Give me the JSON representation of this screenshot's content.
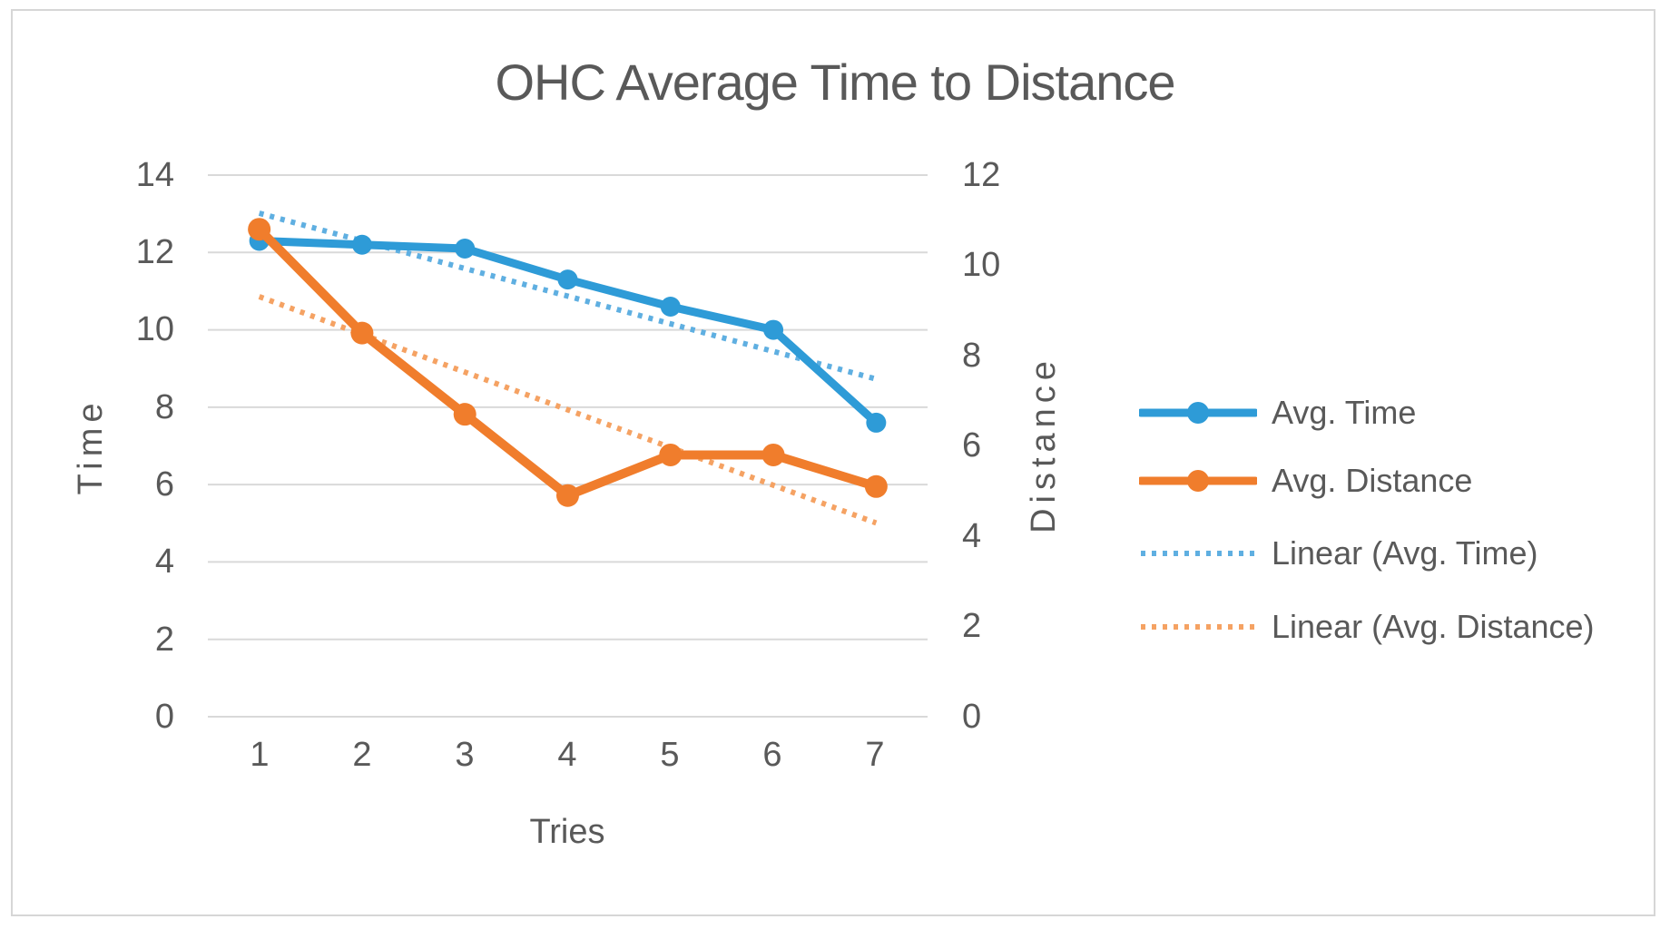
{
  "title": "OHC Average Time to Distance",
  "axes": {
    "left": {
      "title": "Time",
      "ticks": [
        "14",
        "12",
        "10",
        "8",
        "6",
        "4",
        "2",
        "0"
      ]
    },
    "right": {
      "title": "Distance",
      "ticks": [
        "12",
        "10",
        "8",
        "6",
        "4",
        "2",
        "0"
      ]
    },
    "x": {
      "title": "Tries",
      "ticks": [
        "1",
        "2",
        "3",
        "4",
        "5",
        "6",
        "7"
      ]
    }
  },
  "legend": {
    "items": [
      {
        "label": "Avg. Time",
        "color": "#2E9BD7",
        "style": "solid",
        "marker": true
      },
      {
        "label": "Avg. Distance",
        "color": "#F07D2C",
        "style": "solid",
        "marker": true
      },
      {
        "label": "Linear (Avg. Time)",
        "color": "#5FAFE1",
        "style": "dotted",
        "marker": false
      },
      {
        "label": "Linear (Avg. Distance)",
        "color": "#F5A263",
        "style": "dotted",
        "marker": false
      }
    ]
  },
  "colors": {
    "blue": "#2E9BD7",
    "orange": "#F07D2C",
    "blue_trend": "#5FAFE1",
    "orange_trend": "#F5A263",
    "gridline": "#D9D9D9",
    "text": "#595959",
    "border": "#D6D6D6",
    "background": "#FFFFFF"
  },
  "chart_data": {
    "type": "line",
    "title": "OHC Average Time to Distance",
    "xlabel": "Tries",
    "ylabel_left": "Time",
    "ylabel_right": "Distance",
    "x": [
      1,
      2,
      3,
      4,
      5,
      6,
      7
    ],
    "series": [
      {
        "name": "Avg. Time",
        "axis": "left",
        "style": "solid",
        "color": "#2E9BD7",
        "values": [
          12.3,
          12.2,
          12.1,
          11.3,
          10.6,
          10.0,
          7.6
        ]
      },
      {
        "name": "Avg. Distance",
        "axis": "right",
        "style": "solid",
        "color": "#F07D2C",
        "values": [
          10.8,
          8.5,
          6.7,
          4.9,
          5.8,
          5.8,
          5.1
        ]
      },
      {
        "name": "Linear (Avg. Time)",
        "axis": "left",
        "style": "dotted",
        "color": "#5FAFE1",
        "trend_of": "Avg. Time"
      },
      {
        "name": "Linear (Avg. Distance)",
        "axis": "right",
        "style": "dotted",
        "color": "#F5A263",
        "trend_of": "Avg. Distance"
      }
    ],
    "ylim_left": [
      0,
      14
    ],
    "ylim_right": [
      0,
      12
    ],
    "y_major_unit": 2,
    "grid": "horizontal",
    "legend_position": "right"
  }
}
